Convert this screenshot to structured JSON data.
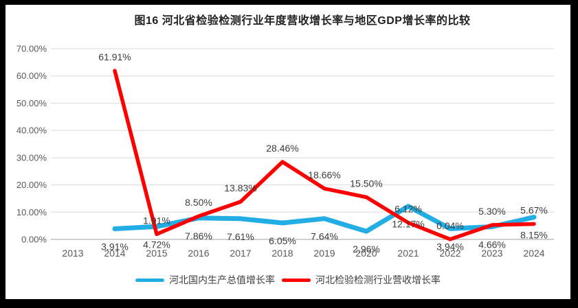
{
  "frame": {
    "border_color": "#000000",
    "background": "#ffffff"
  },
  "chart_data": {
    "type": "line",
    "title": "图16 河北省检验检测行业年度营收增长率与地区GDP增长率的比较",
    "categories": [
      "2013",
      "2014",
      "2015",
      "2016",
      "2017",
      "2018",
      "2019",
      "2020",
      "2021",
      "2022",
      "2023",
      "2024"
    ],
    "series": [
      {
        "name": "河北国内生产总值增长率",
        "color": "#23ADE5",
        "label_position": "below",
        "values": [
          null,
          3.91,
          4.72,
          7.86,
          7.61,
          6.05,
          7.64,
          2.96,
          12.17,
          3.94,
          4.66,
          8.15
        ]
      },
      {
        "name": "河北检验检测行业营收增长率",
        "color": "#FE0000",
        "label_position": "above",
        "values": [
          null,
          61.91,
          1.91,
          8.5,
          13.83,
          28.46,
          18.66,
          15.5,
          6.12,
          0.04,
          5.3,
          5.67
        ]
      }
    ],
    "y_axis": {
      "min": 0,
      "max": 70,
      "step": 10,
      "tick_labels": [
        "0.00%",
        "10.00%",
        "20.00%",
        "30.00%",
        "40.00%",
        "50.00%",
        "60.00%",
        "70.00%"
      ]
    },
    "grid": true,
    "legend_position": "bottom",
    "gridline_color": "#D9D9D9",
    "axis_line_color": "#BFBFBF",
    "axis_text_color": "#595959",
    "data_label_color": "#3b3b3b"
  },
  "legend": {
    "items": [
      {
        "label": "河北国内生产总值增长率",
        "color": "#23ADE5"
      },
      {
        "label": "河北检验检测行业营收增长率",
        "color": "#FE0000"
      }
    ]
  }
}
